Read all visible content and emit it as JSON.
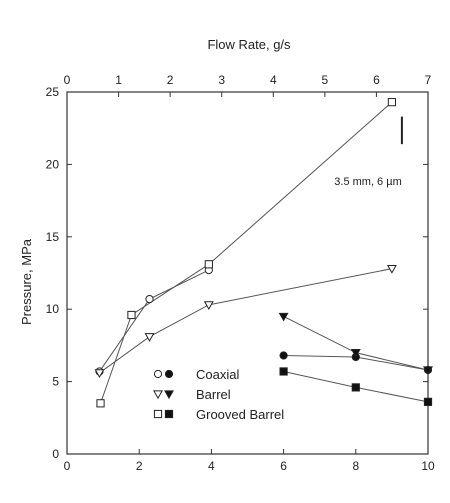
{
  "chart_data": {
    "type": "scatter",
    "top_axis_label": "Flow Rate, g/s",
    "top_ticks": [
      "0",
      "1",
      "2",
      "3",
      "4",
      "5",
      "6",
      "7"
    ],
    "top_xlim": [
      0,
      7
    ],
    "bottom_ticks": [
      "0",
      "2",
      "4",
      "6",
      "8",
      "10"
    ],
    "bottom_xlim": [
      0,
      10
    ],
    "ylabel": "Pressure, MPa",
    "yticks": [
      "0",
      "5",
      "10",
      "15",
      "20",
      "25"
    ],
    "ylim": [
      0,
      25
    ],
    "annotation": "3.5 mm, 6 µm",
    "series": [
      {
        "name": "Coaxial",
        "axis": "top",
        "marker": "circle-open",
        "x": [
          0.63,
          1.6,
          2.75
        ],
        "y": [
          5.7,
          10.7,
          12.7
        ]
      },
      {
        "name": "Barrel",
        "axis": "top",
        "marker": "triangle-open",
        "x": [
          0.63,
          1.6,
          2.75,
          6.3
        ],
        "y": [
          5.6,
          8.1,
          10.3,
          12.8
        ]
      },
      {
        "name": "Grooved Barrel",
        "axis": "top",
        "marker": "square-open",
        "x": [
          0.65,
          1.25,
          2.75,
          6.3
        ],
        "y": [
          3.5,
          9.6,
          13.1,
          24.3
        ]
      },
      {
        "name": "Coaxial",
        "axis": "bottom",
        "marker": "circle-filled",
        "x": [
          6,
          8,
          10
        ],
        "y": [
          6.8,
          6.7,
          5.8
        ]
      },
      {
        "name": "Barrel",
        "axis": "bottom",
        "marker": "triangle-filled",
        "x": [
          6,
          8,
          10
        ],
        "y": [
          9.5,
          7.0,
          5.8
        ]
      },
      {
        "name": "Grooved Barrel",
        "axis": "bottom",
        "marker": "square-filled",
        "x": [
          6,
          8,
          10
        ],
        "y": [
          5.7,
          4.6,
          3.6
        ]
      }
    ],
    "legend": [
      {
        "open": "circle-open",
        "filled": "circle-filled",
        "label": "Coaxial"
      },
      {
        "open": "triangle-open",
        "filled": "triangle-filled",
        "label": "Barrel"
      },
      {
        "open": "square-open",
        "filled": "square-filled",
        "label": "Grooved Barrel"
      }
    ]
  }
}
